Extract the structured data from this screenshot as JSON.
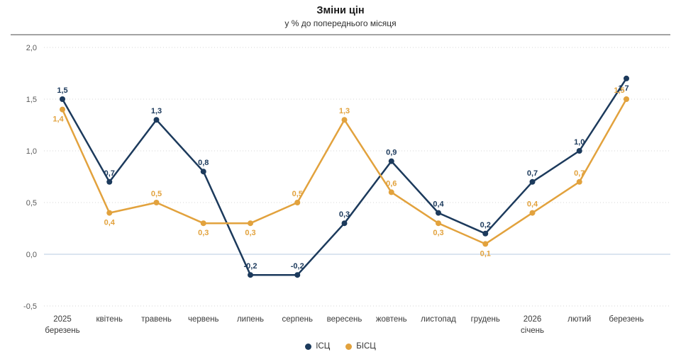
{
  "chart": {
    "title": "Зміни цін",
    "subtitle": "у % до попереднього місяця"
  },
  "chart_data": {
    "type": "line",
    "title": "Зміни цін",
    "subtitle": "у % до попереднього місяця",
    "xlabel": "",
    "ylabel": "",
    "ylim": [
      -0.5,
      2.0
    ],
    "grid": "horizontal-dotted",
    "zero_line": true,
    "legend_position": "bottom",
    "categories": [
      [
        "2025",
        "березень"
      ],
      [
        "квітень"
      ],
      [
        "травень"
      ],
      [
        "червень"
      ],
      [
        "липень"
      ],
      [
        "серпень"
      ],
      [
        "вересень"
      ],
      [
        "жовтень"
      ],
      [
        "листопад"
      ],
      [
        "грудень"
      ],
      [
        "2026",
        "січень"
      ],
      [
        "лютий"
      ],
      [
        "березень"
      ]
    ],
    "yticks": {
      "labels": [
        "2,0",
        "1,5",
        "1,0",
        "0,5",
        "0,0",
        "-0,5"
      ],
      "values": [
        2.0,
        1.5,
        1.0,
        0.5,
        0.0,
        -0.5
      ]
    },
    "series": [
      {
        "name": "ІСЦ",
        "color": "#1c3a5c",
        "values": [
          1.5,
          0.7,
          1.3,
          0.8,
          -0.2,
          -0.2,
          0.3,
          0.9,
          0.4,
          0.2,
          0.7,
          1.0,
          1.7
        ],
        "labels": [
          "1,5",
          "0,7",
          "1,3",
          "0,8",
          "-0,2",
          "-0,2",
          "0,3",
          "0,9",
          "0,4",
          "0,2",
          "0,7",
          "1,0",
          "1,7"
        ],
        "label_pos": [
          "above",
          "above",
          "above",
          "above",
          "above",
          "above",
          "above",
          "above",
          "above",
          "above",
          "above",
          "above",
          "below"
        ],
        "label_dx": [
          0,
          0,
          0,
          0,
          0,
          0,
          0,
          0,
          0,
          0,
          0,
          0,
          -4
        ]
      },
      {
        "name": "БІСЦ",
        "color": "#e2a23d",
        "values": [
          1.4,
          0.4,
          0.5,
          0.3,
          0.3,
          0.5,
          1.3,
          0.6,
          0.3,
          0.1,
          0.4,
          0.7,
          1.5
        ],
        "labels": [
          "1,4",
          "0,4",
          "0,5",
          "0,3",
          "0,3",
          "0,5",
          "1,3",
          "0,6",
          "0,3",
          "0,1",
          "0,4",
          "0,7",
          "1,5"
        ],
        "label_pos": [
          "below",
          "below",
          "above",
          "below",
          "below",
          "above",
          "above",
          "above",
          "below",
          "below",
          "above",
          "above",
          "above"
        ],
        "label_dx": [
          -6,
          0,
          0,
          0,
          0,
          0,
          0,
          0,
          0,
          0,
          0,
          0,
          -10
        ]
      }
    ],
    "colors": {
      "grid": "#d6d6d6",
      "zero_line": "#dbe5f0",
      "y_tick_label": "#595959",
      "x_axis_label": "#3b3b3b",
      "divider": "#a3a3a3"
    }
  }
}
